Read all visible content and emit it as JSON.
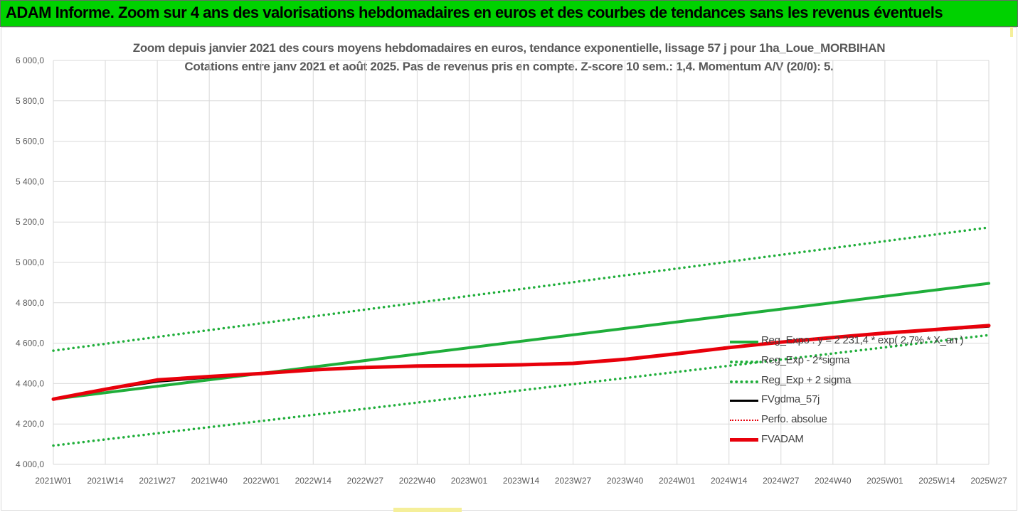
{
  "header": {
    "title": "ADAM Informe. Zoom sur 4 ans des valorisations hebdomadaires en euros et des courbes de tendances sans les revenus éventuels"
  },
  "chart_data": {
    "type": "line",
    "title": "Zoom depuis janvier 2021 des cours moyens hebdomadaires en euros, tendance exponentielle, lissage 57 j pour 1ha_Loue_MORBIHAN",
    "subtitle": "Cotations entre janv 2021 et août 2025.  Pas de revenus pris en compte. Z-score 10 sem.: 1,4. Momentum A/V (20/0): 5.",
    "xlabel": "",
    "ylabel": "",
    "ylim": [
      4000,
      6000
    ],
    "yticks": [
      "6 000,0",
      "5 800,0",
      "5 600,0",
      "5 400,0",
      "5 200,0",
      "5 000,0",
      "4 800,0",
      "4 600,0",
      "4 400,0",
      "4 200,0",
      "4 000,0"
    ],
    "ytick_values": [
      6000,
      5800,
      5600,
      5400,
      5200,
      5000,
      4800,
      4600,
      4400,
      4200,
      4000
    ],
    "x_categories": [
      "2021W01",
      "2021W14",
      "2021W27",
      "2021W40",
      "2022W01",
      "2022W14",
      "2022W27",
      "2022W40",
      "2023W01",
      "2023W14",
      "2023W27",
      "2023W40",
      "2024W01",
      "2024W14",
      "2024W27",
      "2024W40",
      "2025W01",
      "2025W14",
      "2025W27"
    ],
    "grid": true,
    "legend_position": "bottom-right",
    "series": [
      {
        "name": "Reg_Expo : y = 2 231,4 * exp( 2,7% * X_an )",
        "color": "#1fae3a",
        "style": "solid",
        "x": [
          0,
          18
        ],
        "y": [
          4323,
          4896
        ]
      },
      {
        "name": "Reg_Exp - 2*sigma",
        "color": "#1fae3a",
        "style": "dotted",
        "x": [
          0,
          18
        ],
        "y": [
          4093,
          4640
        ]
      },
      {
        "name": "Reg_Exp + 2 sigma",
        "color": "#1fae3a",
        "style": "dotted",
        "x": [
          0,
          18
        ],
        "y": [
          4563,
          5173
        ]
      },
      {
        "name": "FVgdma_57j",
        "color": "#000000",
        "style": "solid",
        "x": [
          0,
          1,
          2,
          3,
          4,
          5,
          6,
          7,
          8,
          9,
          10,
          11,
          12,
          13,
          14,
          15,
          16,
          17,
          18
        ],
        "y": [
          4323,
          4370,
          4410,
          4430,
          4448,
          4468,
          4480,
          4487,
          4490,
          4492,
          4498,
          4520,
          4548,
          4578,
          4605,
          4628,
          4648,
          4665,
          4682
        ]
      },
      {
        "name": "Perfo. absolue",
        "color": "#e8000b",
        "style": "dotted",
        "x": [
          0,
          1,
          2,
          3,
          4,
          5,
          6,
          7,
          8,
          9,
          10,
          11,
          12,
          13,
          14,
          15,
          16,
          17,
          18
        ],
        "y": [
          4323,
          4372,
          4418,
          4435,
          4450,
          4468,
          4480,
          4487,
          4489,
          4493,
          4500,
          4520,
          4548,
          4578,
          4605,
          4628,
          4650,
          4668,
          4687
        ]
      },
      {
        "name": "FVADAM",
        "color": "#e8000b",
        "style": "thick",
        "x": [
          0,
          1,
          2,
          3,
          4,
          5,
          6,
          7,
          8,
          9,
          10,
          11,
          12,
          13,
          14,
          15,
          16,
          17,
          18
        ],
        "y": [
          4323,
          4372,
          4418,
          4435,
          4450,
          4468,
          4480,
          4487,
          4489,
          4493,
          4500,
          4520,
          4548,
          4578,
          4605,
          4628,
          4650,
          4668,
          4687
        ]
      }
    ]
  }
}
